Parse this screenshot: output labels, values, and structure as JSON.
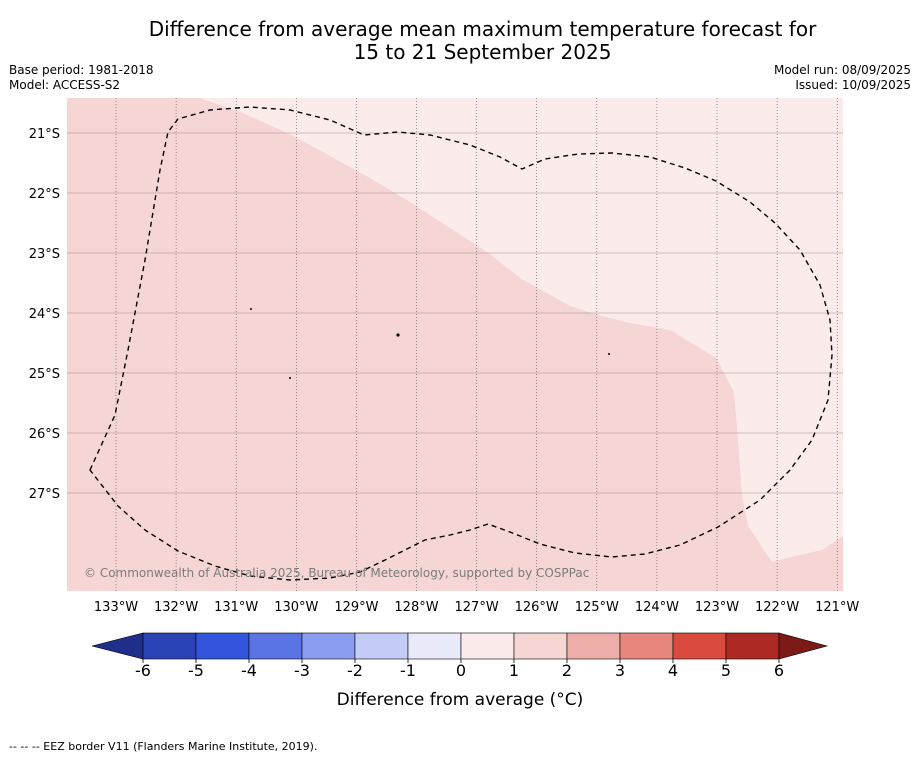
{
  "title": {
    "line1": "Difference from average mean maximum temperature forecast for",
    "line2": "15 to 21 September 2025"
  },
  "meta": {
    "base_period": "Base period: 1981-2018",
    "model": "Model: ACCESS-S2",
    "model_run": "Model run: 08/09/2025",
    "issued": "Issued: 10/09/2025"
  },
  "map": {
    "lat_labels": [
      "21°S",
      "22°S",
      "23°S",
      "24°S",
      "25°S",
      "26°S",
      "27°S"
    ],
    "lon_labels": [
      "133°W",
      "132°W",
      "131°W",
      "130°W",
      "129°W",
      "128°W",
      "127°W",
      "126°W",
      "125°W",
      "124°W",
      "123°W",
      "122°W",
      "121°W"
    ],
    "copyright": "© Commonwealth of Australia 2025, Bureau of Meteorology, supported by COSPPac",
    "colors": {
      "anomaly_1_to_2": "#f6d6d4",
      "anomaly_0_to_1": "#fbeceb",
      "eez_border": "#000000"
    }
  },
  "colorbar": {
    "ticks": [
      "-6",
      "-5",
      "-4",
      "-3",
      "-2",
      "-1",
      "0",
      "1",
      "2",
      "3",
      "4",
      "5",
      "6"
    ],
    "label": "Difference from average (°C)",
    "colors": [
      "#1f2f8a",
      "#2a43b5",
      "#3355dd",
      "#5a75e3",
      "#8b9df0",
      "#c3cbf6",
      "#e9ebfb",
      "#fbeceb",
      "#f6d6d4",
      "#edaea9",
      "#e8877e",
      "#db4a3e",
      "#ad2923",
      "#7b1a17"
    ]
  },
  "legend": {
    "eez_line": "--  --  -- EEZ border V11 (Flanders Marine Institute, 2019)."
  }
}
